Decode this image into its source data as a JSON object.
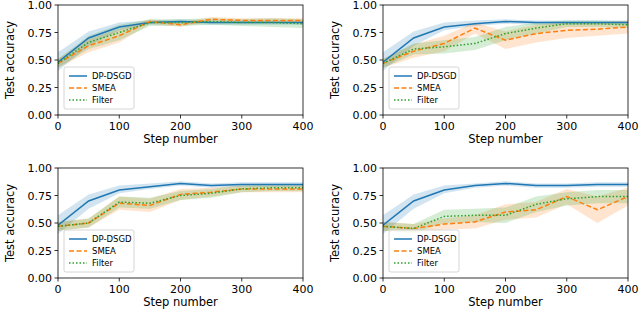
{
  "chart_data": [
    {
      "type": "line",
      "x_label": "Step number",
      "y_label": "Test accuracy",
      "x": [
        0,
        50,
        100,
        150,
        200,
        250,
        300,
        350,
        400
      ],
      "xlim": [
        0,
        400
      ],
      "xticks": [
        0,
        100,
        200,
        300,
        400
      ],
      "ylim": [
        0,
        1
      ],
      "yticks": [
        {
          "value": 0,
          "label": "0.00"
        },
        {
          "value": 0.25,
          "label": "0.25"
        },
        {
          "value": 0.5,
          "label": "0.50"
        },
        {
          "value": 0.75,
          "label": "0.75"
        },
        {
          "value": 1,
          "label": "1.00"
        }
      ],
      "legend": "lower left",
      "grid": false,
      "series": [
        {
          "name": "DP-DSGD",
          "color": "#1f77b4",
          "line_style": "solid",
          "values": [
            0.48,
            0.7,
            0.8,
            0.84,
            0.85,
            0.84,
            0.84,
            0.84,
            0.84
          ],
          "lower": [
            0.4,
            0.63,
            0.77,
            0.82,
            0.83,
            0.82,
            0.82,
            0.82,
            0.82
          ],
          "upper": [
            0.57,
            0.76,
            0.84,
            0.86,
            0.87,
            0.86,
            0.86,
            0.86,
            0.86
          ]
        },
        {
          "name": "SMEA",
          "color": "#ff7f0e",
          "line_style": "dashed",
          "values": [
            0.47,
            0.63,
            0.72,
            0.85,
            0.82,
            0.87,
            0.86,
            0.86,
            0.86
          ],
          "lower": [
            0.43,
            0.57,
            0.66,
            0.83,
            0.8,
            0.85,
            0.84,
            0.84,
            0.84
          ],
          "upper": [
            0.51,
            0.69,
            0.78,
            0.87,
            0.84,
            0.89,
            0.88,
            0.88,
            0.88
          ]
        },
        {
          "name": "Filter",
          "color": "#2ca02c",
          "line_style": "dotted",
          "values": [
            0.47,
            0.66,
            0.75,
            0.84,
            0.84,
            0.85,
            0.84,
            0.84,
            0.83
          ],
          "lower": [
            0.43,
            0.6,
            0.68,
            0.81,
            0.81,
            0.82,
            0.81,
            0.8,
            0.79
          ],
          "upper": [
            0.51,
            0.72,
            0.82,
            0.87,
            0.87,
            0.88,
            0.87,
            0.88,
            0.87
          ]
        }
      ]
    },
    {
      "type": "line",
      "x_label": "Step number",
      "y_label": "Test accuracy",
      "x": [
        0,
        50,
        100,
        150,
        200,
        250,
        300,
        350,
        400
      ],
      "xlim": [
        0,
        400
      ],
      "xticks": [
        0,
        100,
        200,
        300,
        400
      ],
      "ylim": [
        0,
        1
      ],
      "yticks": [
        {
          "value": 0,
          "label": "0.00"
        },
        {
          "value": 0.25,
          "label": "0.25"
        },
        {
          "value": 0.5,
          "label": "0.50"
        },
        {
          "value": 0.75,
          "label": "0.75"
        },
        {
          "value": 1,
          "label": "1.00"
        }
      ],
      "legend": "lower left",
      "grid": false,
      "series": [
        {
          "name": "DP-DSGD",
          "color": "#1f77b4",
          "line_style": "solid",
          "values": [
            0.48,
            0.7,
            0.8,
            0.83,
            0.85,
            0.84,
            0.84,
            0.84,
            0.84
          ],
          "lower": [
            0.4,
            0.63,
            0.77,
            0.81,
            0.83,
            0.82,
            0.82,
            0.82,
            0.82
          ],
          "upper": [
            0.57,
            0.76,
            0.84,
            0.86,
            0.87,
            0.86,
            0.86,
            0.86,
            0.86
          ]
        },
        {
          "name": "SMEA",
          "color": "#ff7f0e",
          "line_style": "dashed",
          "values": [
            0.47,
            0.58,
            0.65,
            0.79,
            0.68,
            0.74,
            0.77,
            0.78,
            0.8
          ],
          "lower": [
            0.43,
            0.52,
            0.58,
            0.74,
            0.6,
            0.66,
            0.7,
            0.72,
            0.74
          ],
          "upper": [
            0.51,
            0.64,
            0.72,
            0.84,
            0.76,
            0.82,
            0.84,
            0.84,
            0.86
          ]
        },
        {
          "name": "Filter",
          "color": "#2ca02c",
          "line_style": "dotted",
          "values": [
            0.47,
            0.6,
            0.62,
            0.65,
            0.74,
            0.79,
            0.83,
            0.83,
            0.82
          ],
          "lower": [
            0.43,
            0.55,
            0.56,
            0.59,
            0.68,
            0.74,
            0.8,
            0.8,
            0.79
          ],
          "upper": [
            0.51,
            0.65,
            0.68,
            0.71,
            0.8,
            0.84,
            0.86,
            0.86,
            0.85
          ]
        }
      ]
    },
    {
      "type": "line",
      "x_label": "Step number",
      "y_label": "Test accuracy",
      "x": [
        0,
        50,
        100,
        150,
        200,
        250,
        300,
        350,
        400
      ],
      "xlim": [
        0,
        400
      ],
      "xticks": [
        0,
        100,
        200,
        300,
        400
      ],
      "ylim": [
        0,
        1
      ],
      "yticks": [
        {
          "value": 0,
          "label": "0.00"
        },
        {
          "value": 0.25,
          "label": "0.25"
        },
        {
          "value": 0.5,
          "label": "0.50"
        },
        {
          "value": 0.75,
          "label": "0.75"
        },
        {
          "value": 1,
          "label": "1.00"
        }
      ],
      "legend": "lower left",
      "grid": false,
      "series": [
        {
          "name": "DP-DSGD",
          "color": "#1f77b4",
          "line_style": "solid",
          "values": [
            0.48,
            0.7,
            0.8,
            0.83,
            0.86,
            0.84,
            0.85,
            0.85,
            0.85
          ],
          "lower": [
            0.4,
            0.63,
            0.77,
            0.81,
            0.84,
            0.82,
            0.83,
            0.83,
            0.83
          ],
          "upper": [
            0.57,
            0.76,
            0.84,
            0.86,
            0.88,
            0.86,
            0.87,
            0.87,
            0.87
          ]
        },
        {
          "name": "SMEA",
          "color": "#ff7f0e",
          "line_style": "dashed",
          "values": [
            0.47,
            0.5,
            0.68,
            0.66,
            0.76,
            0.78,
            0.81,
            0.81,
            0.81
          ],
          "lower": [
            0.43,
            0.46,
            0.62,
            0.6,
            0.71,
            0.74,
            0.78,
            0.78,
            0.78
          ],
          "upper": [
            0.51,
            0.54,
            0.74,
            0.72,
            0.81,
            0.82,
            0.84,
            0.84,
            0.84
          ]
        },
        {
          "name": "Filter",
          "color": "#2ca02c",
          "line_style": "dotted",
          "values": [
            0.47,
            0.5,
            0.69,
            0.68,
            0.75,
            0.77,
            0.81,
            0.82,
            0.82
          ],
          "lower": [
            0.43,
            0.46,
            0.64,
            0.63,
            0.71,
            0.73,
            0.78,
            0.79,
            0.79
          ],
          "upper": [
            0.51,
            0.54,
            0.74,
            0.73,
            0.79,
            0.81,
            0.84,
            0.85,
            0.85
          ]
        }
      ]
    },
    {
      "type": "line",
      "x_label": "Step number",
      "y_label": "Test accuracy",
      "x": [
        0,
        50,
        100,
        150,
        200,
        250,
        300,
        350,
        400
      ],
      "xlim": [
        0,
        400
      ],
      "xticks": [
        0,
        100,
        200,
        300,
        400
      ],
      "ylim": [
        0,
        1
      ],
      "yticks": [
        {
          "value": 0,
          "label": "0.00"
        },
        {
          "value": 0.25,
          "label": "0.25"
        },
        {
          "value": 0.5,
          "label": "0.50"
        },
        {
          "value": 0.75,
          "label": "0.75"
        },
        {
          "value": 1,
          "label": "1.00"
        }
      ],
      "legend": "lower left",
      "grid": false,
      "series": [
        {
          "name": "DP-DSGD",
          "color": "#1f77b4",
          "line_style": "solid",
          "values": [
            0.48,
            0.7,
            0.8,
            0.84,
            0.86,
            0.84,
            0.84,
            0.85,
            0.85
          ],
          "lower": [
            0.4,
            0.63,
            0.77,
            0.82,
            0.84,
            0.82,
            0.82,
            0.83,
            0.83
          ],
          "upper": [
            0.57,
            0.76,
            0.84,
            0.86,
            0.88,
            0.86,
            0.86,
            0.87,
            0.87
          ]
        },
        {
          "name": "SMEA",
          "color": "#ff7f0e",
          "line_style": "dashed",
          "values": [
            0.47,
            0.45,
            0.49,
            0.51,
            0.6,
            0.62,
            0.74,
            0.62,
            0.74
          ],
          "lower": [
            0.43,
            0.41,
            0.44,
            0.45,
            0.53,
            0.55,
            0.67,
            0.5,
            0.66
          ],
          "upper": [
            0.51,
            0.49,
            0.54,
            0.57,
            0.67,
            0.69,
            0.81,
            0.74,
            0.82
          ]
        },
        {
          "name": "Filter",
          "color": "#2ca02c",
          "line_style": "dotted",
          "values": [
            0.47,
            0.45,
            0.56,
            0.57,
            0.57,
            0.67,
            0.72,
            0.74,
            0.74
          ],
          "lower": [
            0.43,
            0.41,
            0.5,
            0.51,
            0.5,
            0.6,
            0.66,
            0.68,
            0.68
          ],
          "upper": [
            0.51,
            0.49,
            0.62,
            0.63,
            0.64,
            0.74,
            0.78,
            0.8,
            0.8
          ]
        }
      ]
    }
  ]
}
